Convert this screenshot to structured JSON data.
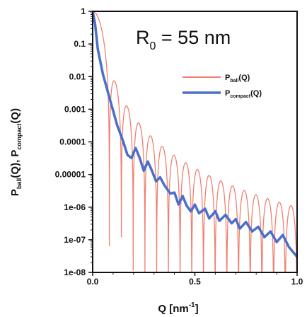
{
  "chart_data": {
    "type": "line",
    "annotation": {
      "main": "R",
      "sub": "0",
      "rest": " = 55 nm"
    },
    "xlabel": {
      "main": "Q [nm",
      "sup": "-1",
      "end": "]"
    },
    "ylabel": {
      "p1": "P",
      "s1": "ball",
      "p2": "(Q), P",
      "s2": "compact",
      "p3": "(Q)"
    },
    "x_ticks": [
      {
        "value": 0.0,
        "label": "0.0"
      },
      {
        "value": 0.5,
        "label": "0.5"
      },
      {
        "value": 1.0,
        "label": "1.0"
      }
    ],
    "y_scale": "log",
    "y_ticks": [
      {
        "exp": 0,
        "label": "1"
      },
      {
        "exp": -1,
        "label": "0.1"
      },
      {
        "exp": -2,
        "label": "0.01"
      },
      {
        "exp": -3,
        "label": "0.001"
      },
      {
        "exp": -4,
        "label": "0.0001"
      },
      {
        "exp": -5,
        "label": "0.00001"
      },
      {
        "exp": -6,
        "label": "1e-06"
      },
      {
        "exp": -7,
        "label": "1e-07"
      },
      {
        "exp": -8,
        "label": "1e-08"
      }
    ],
    "xlim": [
      0,
      1.0
    ],
    "ylim": [
      1e-08,
      1
    ],
    "legend_position": "top-right",
    "series": [
      {
        "key": "ball",
        "legend_main": "P",
        "legend_sub": "ball",
        "legend_end": "(Q)",
        "color": "#f08070",
        "formula": "sphere form factor [3(sin qR - qR cos qR)/(qR)^3]^2, R = 55 nm"
      },
      {
        "key": "compact",
        "legend_main": "P",
        "legend_sub": "compact",
        "legend_end": "(Q)",
        "color": "#4a6fc9",
        "points": [
          [
            0.0,
            1.0
          ],
          [
            0.012,
            0.4
          ],
          [
            0.025,
            0.07
          ],
          [
            0.05,
            0.012
          ],
          [
            0.08,
            0.0025
          ],
          [
            0.1,
            0.0009
          ],
          [
            0.12,
            0.00032
          ],
          [
            0.15,
            0.0001
          ],
          [
            0.17,
            4e-05
          ],
          [
            0.19,
            3.2e-05
          ],
          [
            0.21,
            6.5e-05
          ],
          [
            0.23,
            3.2e-05
          ],
          [
            0.25,
            1.3e-05
          ],
          [
            0.27,
            2.5e-05
          ],
          [
            0.29,
            1.3e-05
          ],
          [
            0.31,
            6.2e-06
          ],
          [
            0.33,
            8.2e-06
          ],
          [
            0.35,
            4.8e-06
          ],
          [
            0.38,
            2.6e-06
          ],
          [
            0.4,
            2.8e-06
          ],
          [
            0.42,
            1.2e-06
          ],
          [
            0.44,
            2.2e-06
          ],
          [
            0.46,
            1.1e-06
          ],
          [
            0.48,
            7.4e-07
          ],
          [
            0.5,
            1.2e-06
          ],
          [
            0.52,
            6.5e-07
          ],
          [
            0.55,
            9e-07
          ],
          [
            0.57,
            4.5e-07
          ],
          [
            0.6,
            7.5e-07
          ],
          [
            0.62,
            3.8e-07
          ],
          [
            0.65,
            5.8e-07
          ],
          [
            0.68,
            3.2e-07
          ],
          [
            0.7,
            4.3e-07
          ],
          [
            0.72,
            2.2e-07
          ],
          [
            0.75,
            3.5e-07
          ],
          [
            0.78,
            1.8e-07
          ],
          [
            0.81,
            2.5e-07
          ],
          [
            0.84,
            1.2e-07
          ],
          [
            0.87,
            1.8e-07
          ],
          [
            0.9,
            8.5e-08
          ],
          [
            0.93,
            1.4e-07
          ],
          [
            0.96,
            6e-08
          ],
          [
            1.0,
            3e-08
          ]
        ]
      }
    ]
  }
}
